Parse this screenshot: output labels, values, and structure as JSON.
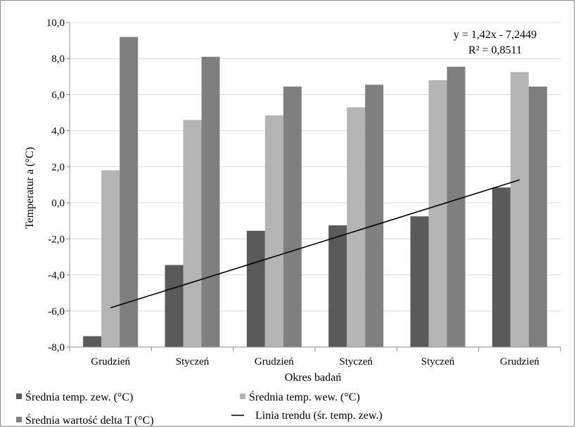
{
  "chart_data": {
    "type": "bar",
    "ylabel": "Temperatur a (°C)",
    "xlabel": "Okres badań",
    "categories": [
      "Grudzień",
      "Styczeń",
      "Grudzień",
      "Styczeń",
      "Styczeń",
      "Grudzień"
    ],
    "ylim": [
      -8,
      10
    ],
    "yticks": [
      "-8,0",
      "-6,0",
      "-4,0",
      "-2,0",
      "0,0",
      "2,0",
      "4,0",
      "6,0",
      "8,0",
      "10,0"
    ],
    "grid": "horizontal",
    "legend_position": "bottom",
    "series": [
      {
        "name": "Średnia temp. zew. (°C)",
        "color": "#5a5a5a",
        "values": [
          -7.4,
          -3.45,
          -1.55,
          -1.25,
          -0.75,
          0.85
        ]
      },
      {
        "name": "Średnia temp. wew. (°C)",
        "color": "#b4b4b4",
        "values": [
          1.8,
          4.6,
          4.85,
          5.3,
          6.8,
          7.25
        ]
      },
      {
        "name": "Średnia wartość delta T (°C)",
        "color": "#7f7f7f",
        "values": [
          9.2,
          8.1,
          6.45,
          6.55,
          7.55,
          6.45
        ]
      }
    ],
    "trendline": {
      "name": "Linia trendu (śr. temp. zew.)",
      "color": "#000000",
      "slope": 1.42,
      "intercept": -7.2449,
      "equation": "y = 1,42x - 7,2449",
      "r2": "R² = 0,8511"
    }
  }
}
